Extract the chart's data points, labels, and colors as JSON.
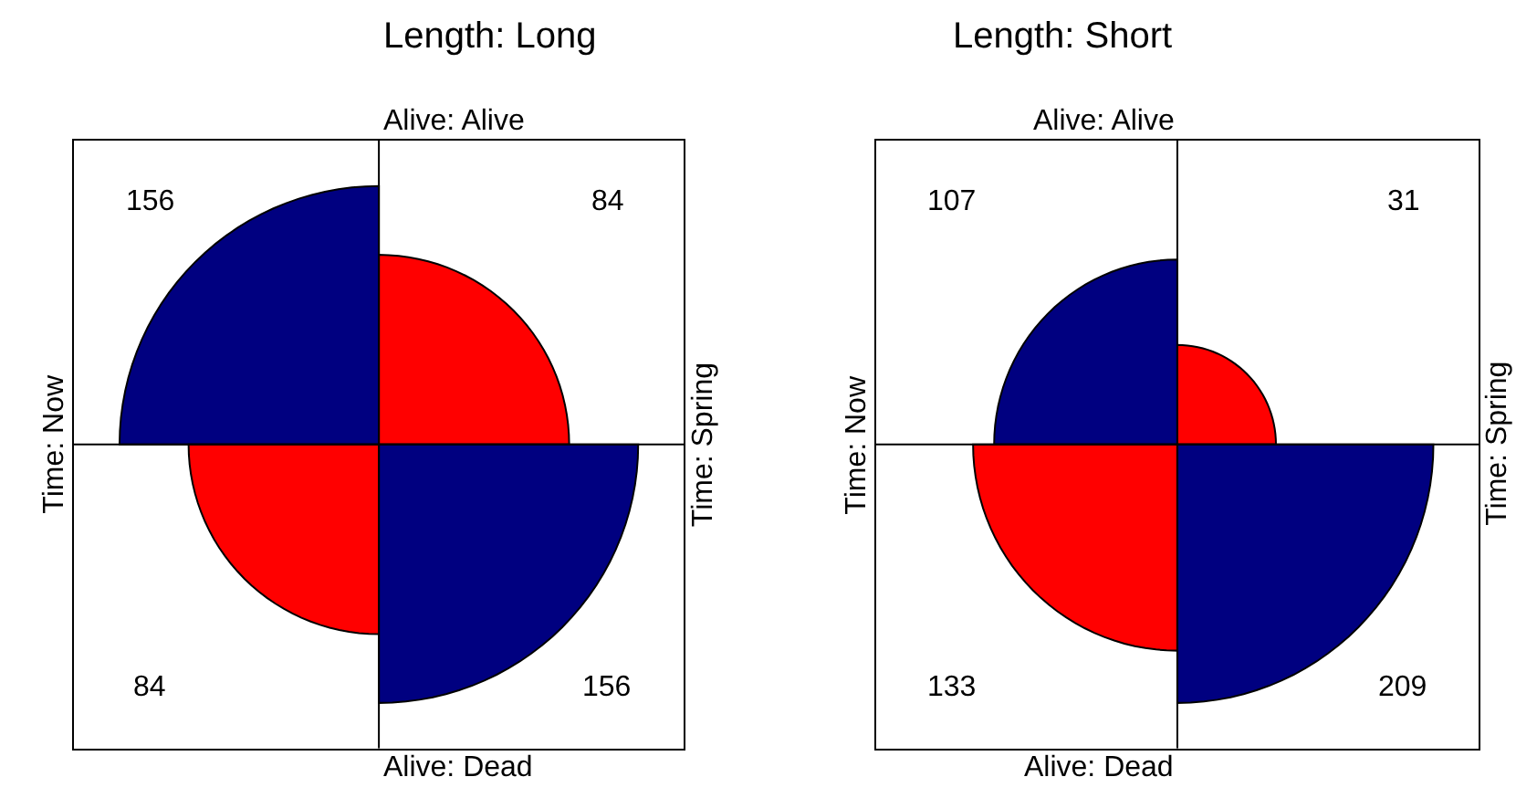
{
  "chart_data": [
    {
      "type": "other",
      "title": "Length: Long",
      "x2label": "Alive: Alive",
      "xlabel": "Alive: Dead",
      "ylabel": "Time: Now",
      "y2label": "Time: Spring",
      "values": [
        156,
        84,
        84,
        156
      ],
      "colors": [
        "#000080",
        "#ff0000",
        "#ff0000",
        "#000080"
      ],
      "data_labels": true
    },
    {
      "type": "other",
      "title": "Length: Short",
      "x2label": "Alive: Alive",
      "xlabel": "Alive: Dead",
      "ylabel": "Time: Now",
      "y2label": "Time: Spring",
      "values": [
        107,
        31,
        133,
        209
      ],
      "colors": [
        "#000080",
        "#ff0000",
        "#ff0000",
        "#000080"
      ],
      "data_labels": true
    }
  ]
}
